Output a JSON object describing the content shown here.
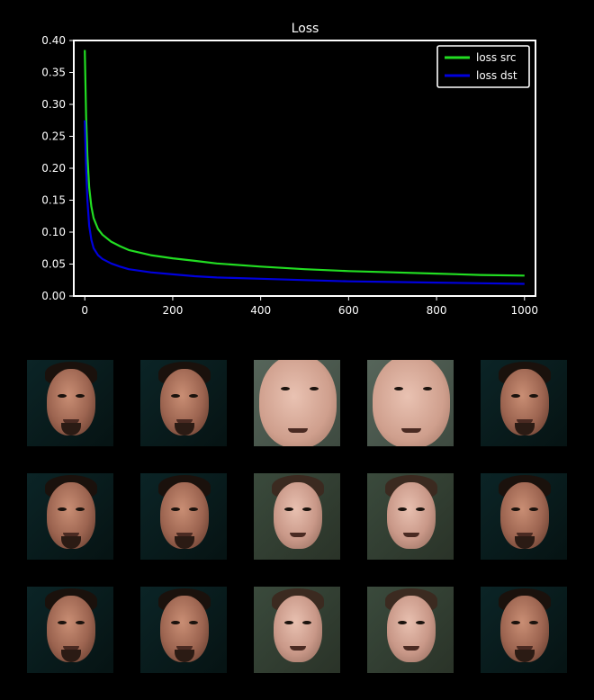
{
  "chart_data": {
    "type": "line",
    "title": "Loss",
    "xlabel": "",
    "ylabel": "",
    "xlim": [
      -25,
      1025
    ],
    "ylim": [
      0,
      0.4
    ],
    "xticks": [
      0,
      200,
      400,
      600,
      800,
      1000
    ],
    "yticks": [
      0.0,
      0.05,
      0.1,
      0.15,
      0.2,
      0.25,
      0.3,
      0.35,
      0.4
    ],
    "xtick_labels": [
      "0",
      "200",
      "400",
      "600",
      "800",
      "1000"
    ],
    "ytick_labels": [
      "0.00",
      "0.05",
      "0.10",
      "0.15",
      "0.20",
      "0.25",
      "0.30",
      "0.35",
      "0.40"
    ],
    "grid": false,
    "legend": "top-right",
    "series": [
      {
        "name": "loss src",
        "color": "#22dd22",
        "x": [
          0,
          3,
          6,
          10,
          15,
          20,
          30,
          40,
          60,
          80,
          100,
          150,
          200,
          250,
          300,
          400,
          500,
          600,
          700,
          800,
          900,
          1000
        ],
        "y": [
          0.385,
          0.28,
          0.22,
          0.17,
          0.14,
          0.122,
          0.105,
          0.096,
          0.085,
          0.078,
          0.072,
          0.064,
          0.059,
          0.055,
          0.051,
          0.046,
          0.042,
          0.039,
          0.037,
          0.035,
          0.033,
          0.032
        ]
      },
      {
        "name": "loss dst",
        "color": "#0000dd",
        "x": [
          0,
          3,
          6,
          10,
          15,
          20,
          30,
          40,
          60,
          80,
          100,
          150,
          200,
          250,
          300,
          400,
          500,
          600,
          700,
          800,
          900,
          1000
        ],
        "y": [
          0.275,
          0.2,
          0.15,
          0.11,
          0.088,
          0.075,
          0.064,
          0.058,
          0.051,
          0.046,
          0.042,
          0.037,
          0.034,
          0.031,
          0.029,
          0.027,
          0.025,
          0.023,
          0.022,
          0.021,
          0.02,
          0.019
        ]
      }
    ]
  },
  "preview_grid": {
    "rows": [
      [
        "tony",
        "tony",
        "elon-close",
        "elon-close",
        "tony"
      ],
      [
        "tony",
        "tony",
        "elon",
        "elon",
        "tony"
      ],
      [
        "tony",
        "tony",
        "elon",
        "elon",
        "tony"
      ]
    ]
  }
}
